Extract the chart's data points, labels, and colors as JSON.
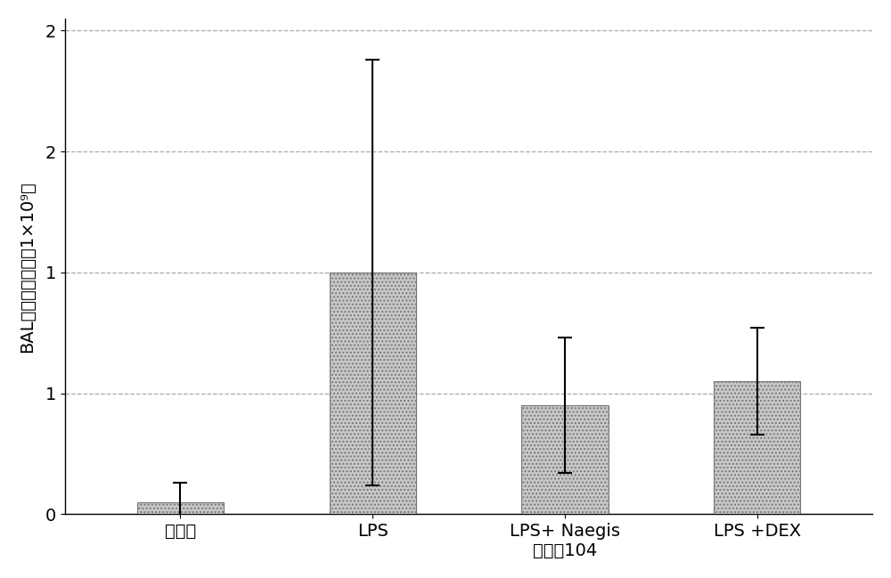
{
  "categories": [
    "媒介物",
    "LPS",
    "LPS+ Naegis\n化合物104",
    "LPS +DEX"
  ],
  "values": [
    0.05,
    1.0,
    0.45,
    0.55
  ],
  "errors": [
    0.08,
    0.88,
    0.28,
    0.22
  ],
  "bar_color": "#c8c8c8",
  "bar_hatch": "....",
  "bar_edge_color": "#777777",
  "ylabel": "BAL中总细胞计数（1×10⁹）",
  "ytick_positions": [
    0.0,
    0.5,
    1.0,
    1.5,
    2.0
  ],
  "ytick_labels": [
    "0",
    "1",
    "1",
    "2",
    "2"
  ],
  "ylim": [
    0,
    2.05
  ],
  "grid_color": "#aaaaaa",
  "grid_style": "--",
  "background_color": "#ffffff",
  "fig_width": 10.0,
  "fig_height": 6.49,
  "label_fontsize": 14,
  "tick_fontsize": 14,
  "bar_width": 0.45,
  "x_positions": [
    0,
    1,
    2,
    3
  ]
}
